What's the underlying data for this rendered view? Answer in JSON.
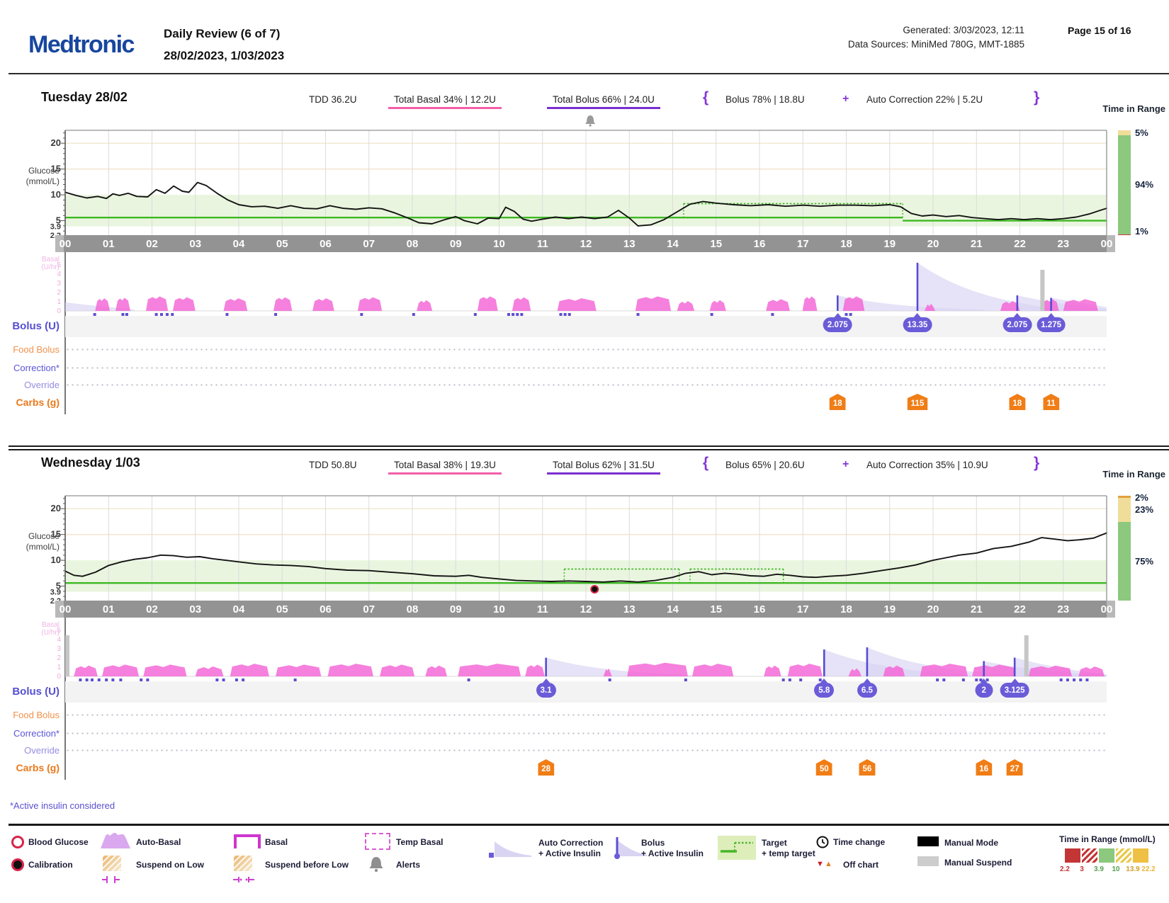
{
  "header": {
    "logo": "Medtronic",
    "title": "Daily Review (6 of 7)",
    "date_range": "28/02/2023, 1/03/2023",
    "generated": "Generated: 3/03/2023, 12:11",
    "data_sources": "Data Sources: MiniMed 780G, MMT-1885",
    "page": "Page 15 of 16"
  },
  "symbols": {
    "open_brace": "{",
    "plus": "+",
    "close_brace": "}"
  },
  "labels": {
    "time_in_range": "Time in Range",
    "glucose": "Glucose",
    "glucose_unit": "(mmol/L)",
    "basal": "Basal",
    "basal_unit": "(U/hr)",
    "bolus": "Bolus (U)",
    "food_bolus": "Food Bolus",
    "correction": "Correction*",
    "override": "Override",
    "carbs": "Carbs (g)",
    "footnote": "*Active insulin considered"
  },
  "axis": {
    "hours": [
      "00",
      "01",
      "02",
      "03",
      "04",
      "05",
      "06",
      "07",
      "08",
      "09",
      "10",
      "11",
      "12",
      "13",
      "14",
      "15",
      "16",
      "17",
      "18",
      "19",
      "20",
      "21",
      "22",
      "23",
      "00"
    ],
    "glucose_ticks": [
      {
        "v": 20,
        "label": "20"
      },
      {
        "v": 15,
        "label": "15"
      },
      {
        "v": 10,
        "label": "10"
      },
      {
        "v": 5,
        "label": "5"
      },
      {
        "v": 3.9,
        "label": "3.9"
      },
      {
        "v": 2.2,
        "label": "2.2"
      }
    ],
    "basal_ticks": [
      {
        "v": 5,
        "label": "5"
      },
      {
        "v": 4,
        "label": "4"
      },
      {
        "v": 3,
        "label": "3"
      },
      {
        "v": 2,
        "label": "2"
      },
      {
        "v": 1,
        "label": "1"
      },
      {
        "v": 0,
        "label": "0"
      }
    ]
  },
  "days": [
    {
      "name": "Tuesday 28/02",
      "tdd": "TDD 36.2U",
      "total_basal": "Total Basal 34% | 12.2U",
      "total_bolus": "Total Bolus 66% | 24.0U",
      "bolus_split": "Bolus 78% | 18.8U",
      "auto_correction": "Auto Correction 22% | 5.2U"
    },
    {
      "name": "Wednesday 1/03",
      "tdd": "TDD 50.8U",
      "total_basal": "Total Basal 38% | 19.3U",
      "total_bolus": "Total Bolus 62% | 31.5U",
      "bolus_split": "Bolus 65% | 20.6U",
      "auto_correction": "Auto Correction 35% | 10.9U"
    }
  ],
  "colors": {
    "medtronic_blue": "#17469e",
    "basal_pink": "#f45fa8",
    "bolus_purple": "#7a2fd0",
    "target_green": "#3db823",
    "auto_basal_fill": "#f464d6",
    "bolus_marker": "#6a5cd8",
    "carb_orange": "#f07d15",
    "tir_green": "#8cc87d",
    "tir_yellow": "#f0dd9a",
    "tir_orange": "#e2a23b",
    "tir_red": "#cc3b3b"
  },
  "chart_data": [
    {
      "type": "line",
      "title": "Tuesday 28/02 sensor glucose (mmol/L) vs time of day",
      "x_range": [
        0,
        24
      ],
      "ylim": [
        2.2,
        22.5
      ],
      "in_range_band": [
        3.9,
        10
      ],
      "glucose": [
        [
          0,
          10.5
        ],
        [
          0.25,
          9.9
        ],
        [
          0.5,
          9.4
        ],
        [
          0.75,
          9.7
        ],
        [
          0.95,
          9.3
        ],
        [
          1.1,
          10.2
        ],
        [
          1.25,
          9.9
        ],
        [
          1.45,
          10.3
        ],
        [
          1.65,
          9.7
        ],
        [
          1.9,
          9.6
        ],
        [
          2.1,
          11.0
        ],
        [
          2.3,
          10.3
        ],
        [
          2.5,
          11.7
        ],
        [
          2.7,
          10.7
        ],
        [
          2.85,
          10.5
        ],
        [
          3.05,
          12.4
        ],
        [
          3.25,
          11.8
        ],
        [
          3.5,
          10.3
        ],
        [
          3.75,
          9.0
        ],
        [
          4.0,
          8.1
        ],
        [
          4.3,
          7.7
        ],
        [
          4.6,
          7.8
        ],
        [
          4.9,
          7.4
        ],
        [
          5.2,
          7.9
        ],
        [
          5.5,
          7.4
        ],
        [
          5.8,
          7.3
        ],
        [
          6.1,
          7.9
        ],
        [
          6.4,
          7.4
        ],
        [
          6.7,
          7.2
        ],
        [
          7.0,
          7.5
        ],
        [
          7.3,
          7.3
        ],
        [
          7.6,
          6.5
        ],
        [
          7.9,
          5.5
        ],
        [
          8.15,
          4.6
        ],
        [
          8.45,
          4.4
        ],
        [
          8.75,
          5.2
        ],
        [
          9.0,
          5.8
        ],
        [
          9.2,
          5.0
        ],
        [
          9.5,
          4.4
        ],
        [
          9.75,
          5.5
        ],
        [
          10.0,
          5.4
        ],
        [
          10.15,
          7.6
        ],
        [
          10.35,
          6.8
        ],
        [
          10.55,
          5.3
        ],
        [
          10.75,
          4.9
        ],
        [
          11.0,
          5.3
        ],
        [
          11.3,
          5.7
        ],
        [
          11.6,
          5.4
        ],
        [
          11.9,
          5.7
        ],
        [
          12.2,
          5.4
        ],
        [
          12.5,
          5.7
        ],
        [
          12.75,
          7.0
        ],
        [
          13.0,
          5.5
        ],
        [
          13.2,
          4.0
        ],
        [
          13.5,
          4.2
        ],
        [
          13.8,
          5.2
        ],
        [
          14.1,
          6.7
        ],
        [
          14.4,
          8.2
        ],
        [
          14.7,
          8.7
        ],
        [
          15.0,
          8.4
        ],
        [
          15.4,
          8.1
        ],
        [
          15.8,
          7.9
        ],
        [
          16.2,
          8.1
        ],
        [
          16.6,
          7.8
        ],
        [
          17.0,
          8.0
        ],
        [
          17.4,
          7.8
        ],
        [
          17.8,
          8.0
        ],
        [
          18.2,
          8.0
        ],
        [
          18.6,
          7.9
        ],
        [
          19.0,
          8.1
        ],
        [
          19.25,
          7.7
        ],
        [
          19.5,
          6.4
        ],
        [
          19.75,
          5.9
        ],
        [
          20.0,
          6.1
        ],
        [
          20.3,
          5.8
        ],
        [
          20.6,
          6.0
        ],
        [
          20.9,
          5.6
        ],
        [
          21.2,
          5.4
        ],
        [
          21.5,
          5.2
        ],
        [
          21.8,
          5.4
        ],
        [
          22.1,
          5.2
        ],
        [
          22.4,
          5.4
        ],
        [
          22.7,
          5.2
        ],
        [
          23.0,
          5.4
        ],
        [
          23.3,
          5.7
        ],
        [
          23.6,
          6.3
        ],
        [
          23.85,
          7.0
        ],
        [
          24,
          7.4
        ]
      ],
      "target_segments": [
        {
          "s": 0,
          "e": 19.3,
          "v": 5.6
        },
        {
          "s": 19.3,
          "e": 24,
          "v": 5.0
        }
      ],
      "temp_target": [
        {
          "s": 14.25,
          "e": 19.3,
          "v": 8.3,
          "base": 5.6
        }
      ],
      "time_in_range": [
        {
          "label": "5%",
          "pct": 5,
          "color": "#f0dd9a"
        },
        {
          "label": "94%",
          "pct": 94,
          "color": "#8cc87d"
        },
        {
          "label": "1%",
          "pct": 1,
          "color": "#cc3b3b"
        }
      ],
      "boluses": [
        {
          "t": 17.8,
          "u": 2.075,
          "label": "2.075"
        },
        {
          "t": 19.64,
          "u": 13.35,
          "label": "13.35"
        },
        {
          "t": 21.94,
          "u": 2.075,
          "label": "2.075"
        },
        {
          "t": 22.72,
          "u": 1.275,
          "label": "1.275"
        }
      ],
      "carbs": [
        {
          "t": 17.8,
          "label": "18"
        },
        {
          "t": 19.64,
          "label": "115"
        },
        {
          "t": 21.94,
          "label": "18"
        },
        {
          "t": 22.72,
          "label": "11"
        }
      ],
      "initial_decay": {
        "h": 12,
        "len": 1.6
      },
      "basal_segments": [
        [
          0.69,
          1.03,
          1.3
        ],
        [
          1.16,
          1.5,
          1.35
        ],
        [
          1.86,
          2.37,
          1.5
        ],
        [
          2.48,
          3.0,
          1.4
        ],
        [
          3.65,
          4.2,
          1.3
        ],
        [
          4.8,
          5.23,
          1.4
        ],
        [
          5.7,
          6.2,
          1.3
        ],
        [
          6.74,
          7.3,
          1.4
        ],
        [
          8.1,
          8.46,
          1.1
        ],
        [
          9.5,
          9.97,
          1.5
        ],
        [
          10.3,
          10.73,
          1.4
        ],
        [
          11.34,
          12.24,
          1.3
        ],
        [
          13.14,
          13.96,
          1.5
        ],
        [
          14.1,
          14.5,
          1.0
        ],
        [
          14.85,
          15.23,
          1.1
        ],
        [
          16.15,
          16.7,
          1.2
        ],
        [
          16.99,
          17.33,
          1.5
        ],
        [
          17.92,
          18.42,
          1.5
        ],
        [
          19.8,
          20.05,
          0.7
        ],
        [
          21.55,
          22.0,
          1.0
        ],
        [
          22.5,
          22.9,
          1.2
        ],
        [
          23.0,
          23.8,
          1.2
        ]
      ],
      "micro_boluses": [
        0.68,
        1.33,
        1.42,
        2.1,
        2.22,
        2.35,
        2.47,
        3.73,
        4.85,
        6.83,
        8.03,
        9.45,
        10.22,
        10.32,
        10.42,
        10.52,
        11.42,
        11.52,
        11.62,
        13.2,
        14.9,
        16.3,
        18.0,
        18.1
      ],
      "suspend_bars": [
        {
          "t": 22.52
        }
      ],
      "alert_t": 12.1,
      "bg_markers": []
    },
    {
      "type": "line",
      "title": "Wednesday 1/03 sensor glucose (mmol/L) vs time of day",
      "x_range": [
        0,
        24
      ],
      "ylim": [
        2.2,
        22.5
      ],
      "in_range_band": [
        3.9,
        10
      ],
      "glucose": [
        [
          0,
          7.9
        ],
        [
          0.2,
          7.1
        ],
        [
          0.4,
          6.9
        ],
        [
          0.7,
          7.7
        ],
        [
          1.0,
          9.0
        ],
        [
          1.3,
          9.7
        ],
        [
          1.6,
          10.2
        ],
        [
          1.9,
          10.5
        ],
        [
          2.2,
          11.0
        ],
        [
          2.5,
          10.9
        ],
        [
          2.8,
          10.6
        ],
        [
          3.1,
          10.7
        ],
        [
          3.4,
          10.3
        ],
        [
          3.7,
          10.0
        ],
        [
          4.0,
          9.7
        ],
        [
          4.4,
          9.3
        ],
        [
          4.8,
          9.1
        ],
        [
          5.2,
          9.0
        ],
        [
          5.6,
          8.8
        ],
        [
          6.0,
          8.4
        ],
        [
          6.5,
          8.1
        ],
        [
          7.0,
          8.0
        ],
        [
          7.5,
          7.7
        ],
        [
          8.0,
          7.4
        ],
        [
          8.5,
          7.0
        ],
        [
          9.0,
          6.9
        ],
        [
          9.3,
          7.1
        ],
        [
          9.6,
          6.7
        ],
        [
          10.0,
          6.4
        ],
        [
          10.4,
          6.1
        ],
        [
          10.8,
          6.0
        ],
        [
          11.2,
          5.9
        ],
        [
          11.6,
          6.0
        ],
        [
          12.0,
          5.9
        ],
        [
          12.4,
          5.8
        ],
        [
          12.8,
          6.0
        ],
        [
          13.2,
          5.8
        ],
        [
          13.6,
          6.1
        ],
        [
          14.0,
          6.7
        ],
        [
          14.3,
          7.5
        ],
        [
          14.6,
          7.8
        ],
        [
          14.9,
          7.2
        ],
        [
          15.2,
          7.5
        ],
        [
          15.5,
          7.3
        ],
        [
          15.8,
          7.0
        ],
        [
          16.1,
          6.9
        ],
        [
          16.4,
          7.3
        ],
        [
          16.7,
          7.1
        ],
        [
          17.0,
          6.8
        ],
        [
          17.3,
          6.7
        ],
        [
          17.6,
          6.9
        ],
        [
          18.0,
          7.1
        ],
        [
          18.4,
          7.5
        ],
        [
          18.8,
          8.0
        ],
        [
          19.2,
          8.5
        ],
        [
          19.6,
          9.1
        ],
        [
          20.0,
          10.0
        ],
        [
          20.3,
          10.5
        ],
        [
          20.6,
          11.0
        ],
        [
          21.0,
          11.4
        ],
        [
          21.4,
          12.3
        ],
        [
          21.8,
          12.7
        ],
        [
          22.2,
          13.5
        ],
        [
          22.5,
          14.4
        ],
        [
          22.8,
          14.1
        ],
        [
          23.1,
          13.8
        ],
        [
          23.4,
          14.0
        ],
        [
          23.7,
          14.3
        ],
        [
          24,
          15.3
        ]
      ],
      "target_segments": [
        {
          "s": 0,
          "e": 24,
          "v": 5.6
        }
      ],
      "temp_target": [
        {
          "s": 11.5,
          "e": 14.15,
          "v": 8.3,
          "base": 5.6
        },
        {
          "s": 14.4,
          "e": 16.55,
          "v": 8.3,
          "base": 5.6
        }
      ],
      "time_in_range": [
        {
          "label": "2%",
          "pct": 2,
          "color": "#e2a23b"
        },
        {
          "label": "23%",
          "pct": 23,
          "color": "#f0dd9a"
        },
        {
          "label": "75%",
          "pct": 75,
          "color": "#8cc87d"
        }
      ],
      "boluses": [
        {
          "t": 11.08,
          "u": 3.1,
          "label": "3.1"
        },
        {
          "t": 17.49,
          "u": 5.8,
          "label": "5.8"
        },
        {
          "t": 18.48,
          "u": 6.5,
          "label": "6.5"
        },
        {
          "t": 21.17,
          "u": 2,
          "label": "2"
        },
        {
          "t": 21.88,
          "u": 3.125,
          "label": "3.125"
        }
      ],
      "carbs": [
        {
          "t": 11.08,
          "label": "28"
        },
        {
          "t": 17.49,
          "label": "50"
        },
        {
          "t": 18.48,
          "label": "56"
        },
        {
          "t": 21.17,
          "label": "16"
        },
        {
          "t": 21.88,
          "label": "27"
        }
      ],
      "basal_segments": [
        [
          0.2,
          0.75,
          1.1
        ],
        [
          0.85,
          1.7,
          1.2
        ],
        [
          1.8,
          2.8,
          1.2
        ],
        [
          3.0,
          3.65,
          1.0
        ],
        [
          3.8,
          4.7,
          1.3
        ],
        [
          4.85,
          5.9,
          1.2
        ],
        [
          6.05,
          7.1,
          1.3
        ],
        [
          7.25,
          8.05,
          1.2
        ],
        [
          8.3,
          8.8,
          1.1
        ],
        [
          9.05,
          10.5,
          1.3
        ],
        [
          10.6,
          11.05,
          1.2
        ],
        [
          12.4,
          12.6,
          0.8
        ],
        [
          12.95,
          14.35,
          1.4
        ],
        [
          14.45,
          15.4,
          1.3
        ],
        [
          16.1,
          16.5,
          1.1
        ],
        [
          16.65,
          17.45,
          1.3
        ],
        [
          18.05,
          18.35,
          0.8
        ],
        [
          18.85,
          19.35,
          1.1
        ],
        [
          19.7,
          20.8,
          1.3
        ],
        [
          20.9,
          21.9,
          1.2
        ],
        [
          22.2,
          23.2,
          1.1
        ],
        [
          23.35,
          23.95,
          1.0
        ]
      ],
      "micro_boluses": [
        0.35,
        0.5,
        0.62,
        0.78,
        0.95,
        1.1,
        1.28,
        1.75,
        1.9,
        3.5,
        3.65,
        3.95,
        4.1,
        5.3,
        9.3,
        12.55,
        14.3,
        16.55,
        16.7,
        16.95,
        17.4,
        20.1,
        20.25,
        20.7,
        21.0,
        21.1,
        21.25,
        22.95,
        23.1,
        23.25,
        23.4,
        23.55
      ],
      "suspend_bars": [
        {
          "t": 0.05
        },
        {
          "t": 22.15
        }
      ],
      "bg_markers": [
        {
          "t": 12.2,
          "v": 4.4
        }
      ]
    }
  ],
  "legend": {
    "blood_glucose": "Blood Glucose",
    "calibration": "Calibration",
    "auto_basal": "Auto-Basal",
    "suspend_on_low": "Suspend on Low",
    "basal": "Basal",
    "suspend_before_low": "Suspend before Low",
    "temp_basal": "Temp Basal",
    "alerts": "Alerts",
    "auto_correction_1": "Auto Correction",
    "auto_correction_2": "+ Active Insulin",
    "bolus_1": "Bolus",
    "bolus_2": "+ Active Insulin",
    "target_1": "Target",
    "target_2": "+ temp target",
    "time_change": "Time change",
    "off_chart": "Off chart",
    "manual_mode": "Manual Mode",
    "manual_suspend": "Manual Suspend",
    "tir_title": "Time in Range (mmol/L)",
    "tir_bounds": [
      "2.2",
      "3",
      "3.9",
      "10",
      "13.9",
      "22.2"
    ]
  }
}
